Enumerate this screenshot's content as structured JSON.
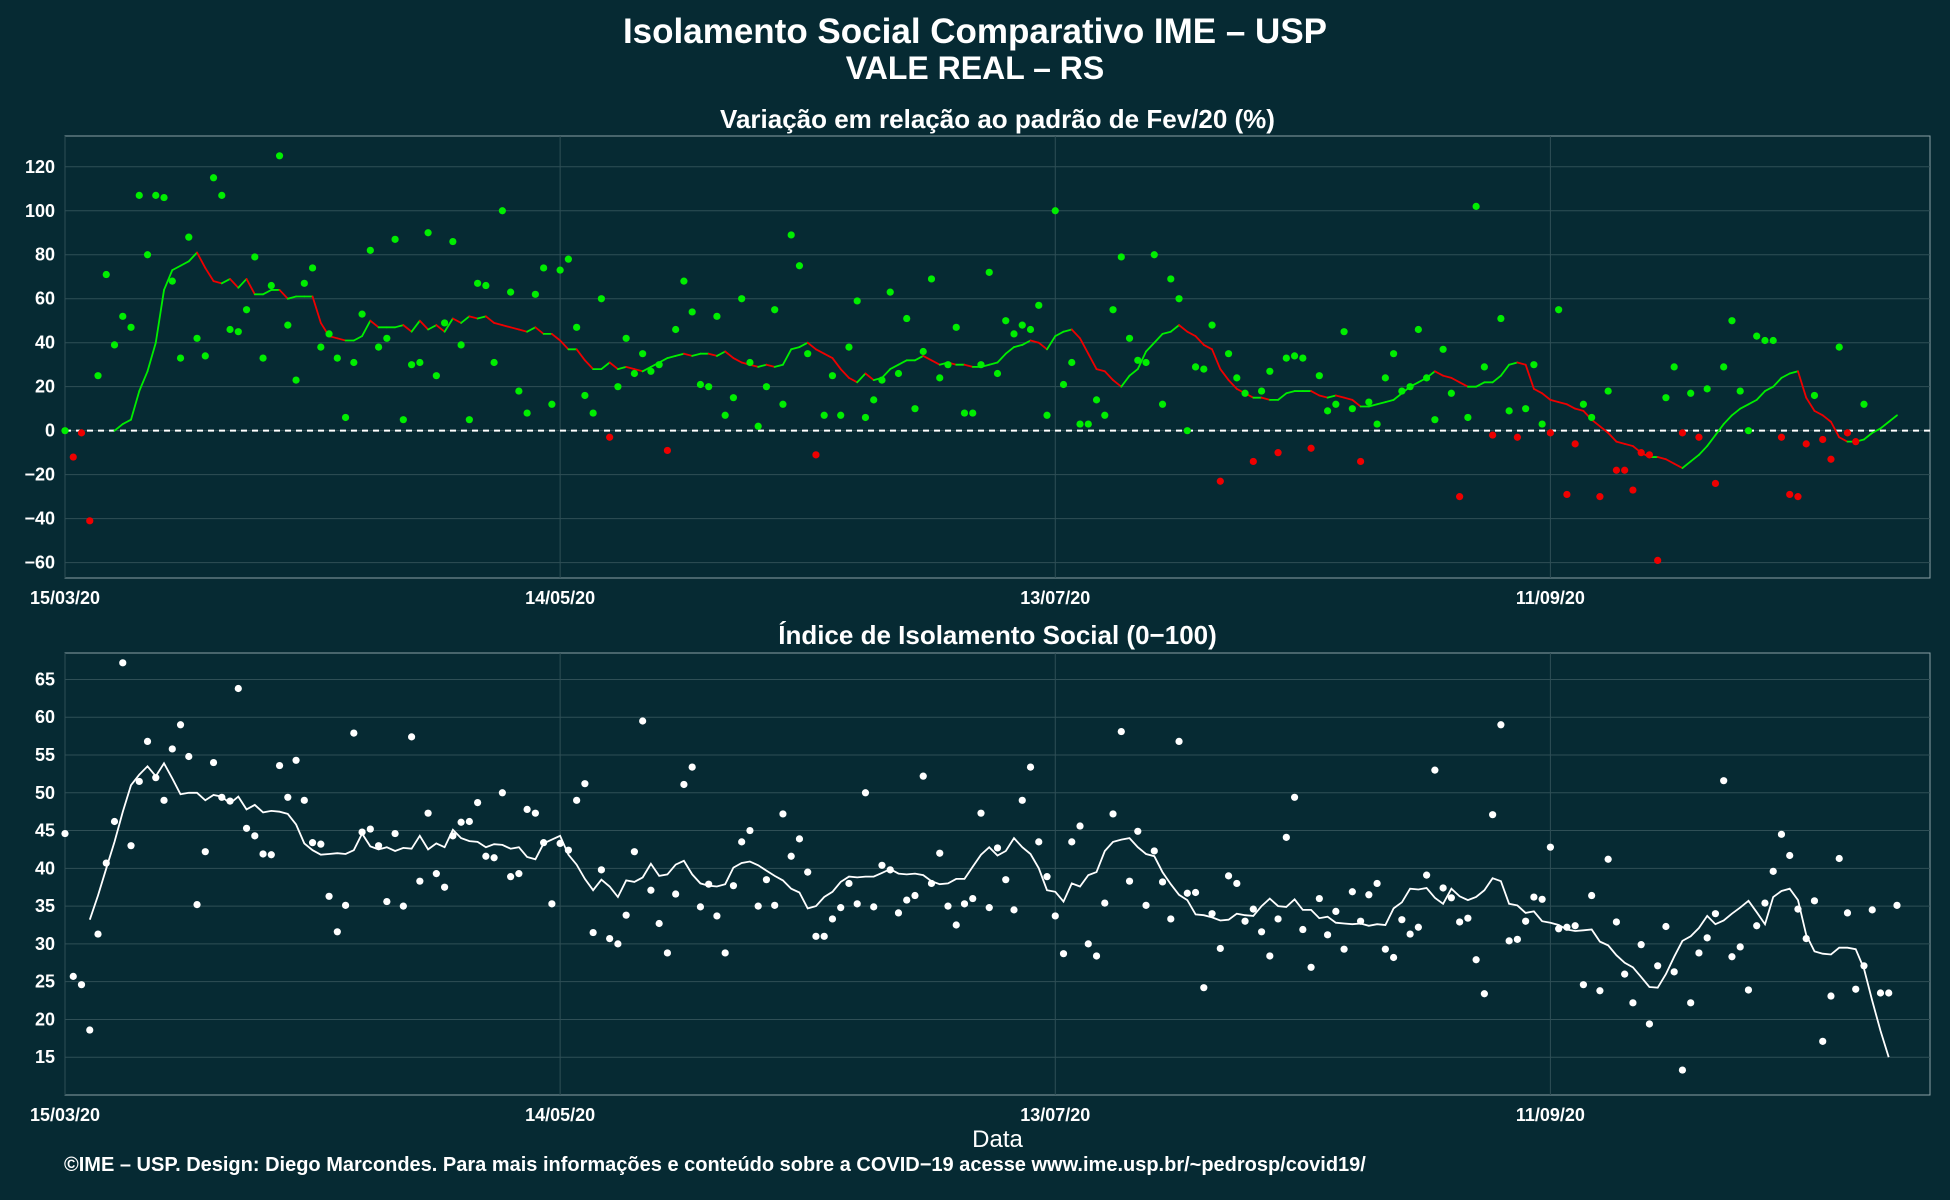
{
  "title": "Isolamento Social Comparativo IME – USP",
  "subtitle": "VALE REAL – RS",
  "footer": "©IME – USP. Design: Diego Marcondes. Para mais informações e conteúdo sobre a COVID−19 acesse www.ime.usp.br/~pedrosp/covid19/",
  "colors": {
    "background": "#062a33",
    "positive": "#00ee00",
    "negative": "#ee0000",
    "index": "#ffffff",
    "grid": "#2f4f56"
  },
  "chart_data": [
    {
      "type": "scatter",
      "title": "Variação em relação ao padrão de Fev/20 (%)",
      "xlabel": "",
      "ylabel": "",
      "x_start": "15/03/20",
      "x_range_days": [
        0,
        226
      ],
      "x_ticks": [
        "15/03/20",
        "14/05/20",
        "13/07/20",
        "11/09/20"
      ],
      "x_tick_days": [
        0,
        60,
        120,
        180
      ],
      "ylim": [
        -67,
        134
      ],
      "y_ticks": [
        -60,
        -40,
        -20,
        0,
        20,
        40,
        60,
        80,
        100,
        120
      ],
      "grid": true,
      "reference_line": 0,
      "points": [
        0,
        -12,
        -1,
        -41,
        25,
        71,
        39,
        52,
        47,
        107,
        80,
        107,
        106,
        68,
        33,
        88,
        42,
        34,
        115,
        107,
        46,
        45,
        55,
        79,
        33,
        66,
        125,
        48,
        23,
        67,
        74,
        38,
        44,
        33,
        6,
        31,
        53,
        82,
        38,
        42,
        87,
        5,
        30,
        31,
        90,
        25,
        49,
        86,
        39,
        5,
        67,
        66,
        31,
        100,
        63,
        18,
        8,
        62,
        74,
        12,
        73,
        78,
        47,
        16,
        8,
        60,
        -3,
        20,
        42,
        26,
        35,
        27,
        30,
        -9,
        46,
        68,
        54,
        21,
        20,
        52,
        7,
        15,
        60,
        31,
        2,
        20,
        55,
        12,
        89,
        75,
        35,
        -11,
        7,
        25,
        7,
        38,
        59,
        6,
        14,
        23,
        63,
        26,
        51,
        10,
        36,
        69,
        24,
        30,
        47,
        8,
        8,
        30,
        72,
        26,
        50,
        44,
        48,
        46,
        57,
        7,
        100,
        21,
        31,
        3,
        3,
        14,
        7,
        55,
        79,
        42,
        32,
        31,
        80,
        12,
        69,
        60,
        0,
        29,
        28,
        48,
        -23,
        35,
        24,
        17,
        -14,
        18,
        27,
        -10,
        33,
        34,
        33,
        -8,
        25,
        9,
        12,
        45,
        10,
        -14,
        13,
        3,
        24,
        35,
        18,
        20,
        46,
        24,
        5,
        37,
        17,
        -30,
        6,
        102,
        29,
        -2,
        51,
        9,
        -3,
        10,
        30,
        3,
        -1,
        55,
        -29,
        -6,
        12,
        6,
        -30,
        18,
        -18,
        -18,
        -27,
        -10,
        -11,
        -59,
        15,
        29,
        -1,
        17,
        -3,
        19,
        -24,
        29,
        50,
        18,
        0,
        43,
        41,
        41,
        -3,
        -29,
        -30,
        -6,
        16,
        -4,
        -13,
        38,
        -1,
        -5,
        12
      ],
      "rolling_mean": [
        null,
        null,
        null,
        null,
        null,
        null,
        0,
        3,
        5,
        18,
        27,
        40,
        64,
        73,
        75,
        77,
        81,
        74,
        68,
        67,
        69,
        65,
        69,
        62,
        62,
        64,
        64,
        60,
        61,
        61,
        61,
        49,
        43,
        42,
        41,
        41,
        43,
        50,
        47,
        47,
        47,
        48,
        45,
        50,
        46,
        48,
        45,
        51,
        49,
        52,
        51,
        52,
        49,
        48,
        47,
        46,
        45,
        47,
        44,
        44,
        41,
        37,
        37,
        32,
        28,
        28,
        31,
        28,
        29,
        28,
        27,
        29,
        31,
        33,
        34,
        35,
        34,
        35,
        35,
        34,
        36,
        33,
        31,
        30,
        29,
        30,
        29,
        30,
        37,
        38,
        40,
        37,
        35,
        33,
        28,
        24,
        22,
        26,
        23,
        24,
        28,
        30,
        32,
        32,
        34,
        32,
        30,
        31,
        30,
        30,
        29,
        29,
        30,
        31,
        35,
        38,
        39,
        41,
        40,
        37,
        43,
        45,
        46,
        42,
        35,
        28,
        27,
        23,
        20,
        25,
        28,
        36,
        40,
        44,
        45,
        48,
        45,
        43,
        39,
        37,
        28,
        23,
        19,
        17,
        15,
        15,
        14,
        14,
        17,
        18,
        18,
        18,
        16,
        15,
        16,
        15,
        14,
        11,
        11,
        12,
        13,
        14,
        17,
        20,
        22,
        24,
        27,
        25,
        24,
        22,
        20,
        20,
        22,
        22,
        25,
        30,
        31,
        30,
        19,
        17,
        14,
        13,
        12,
        10,
        9,
        5,
        2,
        -1,
        -5,
        -6,
        -7,
        -10,
        -12,
        -12,
        -13,
        -15,
        -17,
        -14,
        -11,
        -7,
        -2,
        3,
        7,
        10,
        12,
        14,
        18,
        20,
        24,
        26,
        27,
        15,
        9,
        7,
        4,
        -3,
        -5,
        -5,
        -4,
        -1,
        1,
        4,
        7,
        null
      ]
    },
    {
      "type": "scatter",
      "title": "Índice de Isolamento Social (0−100)",
      "xlabel": "Data",
      "ylabel": "",
      "x_start": "15/03/20",
      "x_range_days": [
        0,
        226
      ],
      "x_ticks": [
        "15/03/20",
        "14/05/20",
        "13/07/20",
        "11/09/20"
      ],
      "x_tick_days": [
        0,
        60,
        120,
        180
      ],
      "ylim": [
        10,
        68.5
      ],
      "y_ticks": [
        15,
        20,
        25,
        30,
        35,
        40,
        45,
        50,
        55,
        60,
        65
      ],
      "grid": true,
      "points": [
        44.6,
        25.7,
        24.6,
        18.6,
        31.3,
        40.7,
        46.2,
        67.2,
        43.0,
        51.5,
        56.8,
        52.0,
        49.0,
        55.8,
        59.0,
        54.8,
        35.2,
        42.2,
        54.0,
        49.4,
        48.9,
        63.8,
        45.3,
        44.3,
        41.9,
        41.8,
        53.6,
        49.4,
        54.3,
        49.0,
        43.4,
        43.2,
        36.3,
        31.6,
        35.1,
        57.9,
        44.8,
        45.2,
        43.0,
        35.6,
        44.6,
        35.0,
        57.4,
        38.3,
        47.3,
        39.3,
        37.5,
        44.3,
        46.1,
        46.2,
        48.7,
        41.6,
        41.4,
        50.0,
        38.9,
        39.3,
        47.8,
        47.3,
        43.4,
        35.3,
        43.3,
        42.4,
        49.0,
        51.2,
        31.5,
        39.8,
        30.7,
        30.0,
        33.8,
        42.2,
        59.5,
        37.1,
        32.7,
        28.8,
        36.6,
        51.1,
        53.4,
        34.9,
        37.9,
        33.7,
        28.8,
        37.7,
        43.5,
        45.0,
        35.0,
        38.5,
        35.1,
        47.2,
        41.6,
        43.9,
        39.5,
        31.0,
        31.0,
        33.3,
        34.8,
        38.0,
        35.3,
        50.0,
        34.9,
        40.4,
        39.8,
        34.1,
        35.8,
        36.4,
        52.2,
        38.0,
        42.0,
        35.0,
        32.5,
        35.3,
        36.0,
        47.3,
        34.8,
        42.7,
        38.5,
        34.5,
        49.0,
        53.4,
        43.5,
        38.9,
        33.7,
        28.7,
        43.5,
        45.6,
        30.0,
        28.4,
        35.4,
        47.2,
        58.1,
        38.3,
        44.9,
        35.1,
        42.3,
        38.2,
        33.3,
        56.8,
        36.7,
        36.8,
        24.2,
        34.0,
        29.4,
        39.0,
        38.0,
        33.0,
        34.6,
        31.6,
        28.4,
        33.3,
        44.1,
        49.4,
        31.9,
        26.9,
        36.0,
        31.2,
        34.3,
        29.3,
        36.9,
        33.0,
        36.5,
        38.0,
        29.3,
        28.2,
        33.2,
        31.3,
        32.2,
        39.1,
        53.0,
        37.4,
        36.1,
        32.9,
        33.4,
        27.9,
        23.4,
        47.1,
        59.0,
        30.4,
        30.6,
        33.0,
        36.2,
        35.9,
        42.8,
        32.0,
        32.2,
        32.4,
        24.6,
        36.4,
        23.8,
        41.2,
        32.9,
        26.0,
        22.2,
        29.9,
        19.4,
        27.1,
        32.3,
        26.3,
        13.3,
        22.2,
        28.8,
        30.8,
        34.0,
        51.6,
        28.3,
        29.6,
        23.9,
        32.4,
        35.4,
        39.6,
        44.5,
        41.7,
        34.6,
        30.7,
        35.7,
        17.1,
        23.1,
        41.3,
        34.1,
        24.0,
        27.1,
        34.5,
        23.5,
        23.5,
        35.1
      ],
      "rolling_mean": [
        null,
        null,
        null,
        33.2,
        36.4,
        40.0,
        43.5,
        47.5,
        51.0,
        52.4,
        53.5,
        52.2,
        53.9,
        51.9,
        49.8,
        50.0,
        50.0,
        49.0,
        49.7,
        49.5,
        48.6,
        49.5,
        47.8,
        48.4,
        47.4,
        47.6,
        47.5,
        47.2,
        45.8,
        43.3,
        42.4,
        41.8,
        41.9,
        42.0,
        41.9,
        42.4,
        44.6,
        42.9,
        42.5,
        42.8,
        42.3,
        42.7,
        42.6,
        44.3,
        42.5,
        43.3,
        42.8,
        45.1,
        44.0,
        43.6,
        43.5,
        42.8,
        43.2,
        43.1,
        42.6,
        42.8,
        41.5,
        41.2,
        43.3,
        43.8,
        44.3,
        41.8,
        40.5,
        38.6,
        37.1,
        38.5,
        37.6,
        36.2,
        38.4,
        38.2,
        38.8,
        40.6,
        39.0,
        39.2,
        40.5,
        41.0,
        39.2,
        38.0,
        37.7,
        37.6,
        37.9,
        40.1,
        40.7,
        40.9,
        40.4,
        39.7,
        39.0,
        38.4,
        37.3,
        36.8,
        34.7,
        35.0,
        36.2,
        36.9,
        38.2,
        38.9,
        38.8,
        38.9,
        38.9,
        39.4,
        39.9,
        39.3,
        39.2,
        39.3,
        39.1,
        38.3,
        37.9,
        38.0,
        38.6,
        38.6,
        40.2,
        41.8,
        42.8,
        41.7,
        42.3,
        44.0,
        42.8,
        41.9,
        40.0,
        37.1,
        36.9,
        35.6,
        38.0,
        37.6,
        39.1,
        39.5,
        42.3,
        43.5,
        43.8,
        44.0,
        42.8,
        41.9,
        41.6,
        39.5,
        37.9,
        36.5,
        35.8,
        33.9,
        33.8,
        33.5,
        33.1,
        33.2,
        34.0,
        33.8,
        33.7,
        35.0,
        36.0,
        35.0,
        34.9,
        35.9,
        34.5,
        34.5,
        33.4,
        33.6,
        32.8,
        32.7,
        32.6,
        32.7,
        32.4,
        32.6,
        32.5,
        34.7,
        35.5,
        37.3,
        37.2,
        37.4,
        36.1,
        35.3,
        37.3,
        36.3,
        35.8,
        36.2,
        37.1,
        38.7,
        38.3,
        35.3,
        35.1,
        34.1,
        34.3,
        33.0,
        32.8,
        32.5,
        31.9,
        31.7,
        31.8,
        31.9,
        30.3,
        29.8,
        28.5,
        27.5,
        26.9,
        25.6,
        24.3,
        24.2,
        26.0,
        28.3,
        30.4,
        31.0,
        32.1,
        33.7,
        32.6,
        33.1,
        34.0,
        34.8,
        35.7,
        34.2,
        32.6,
        36.2,
        37.0,
        37.3,
        35.8,
        31.2,
        29.0,
        28.7,
        28.6,
        29.5,
        29.5,
        29.3,
        26.7,
        22.5,
        18.5,
        15.0
      ]
    }
  ]
}
